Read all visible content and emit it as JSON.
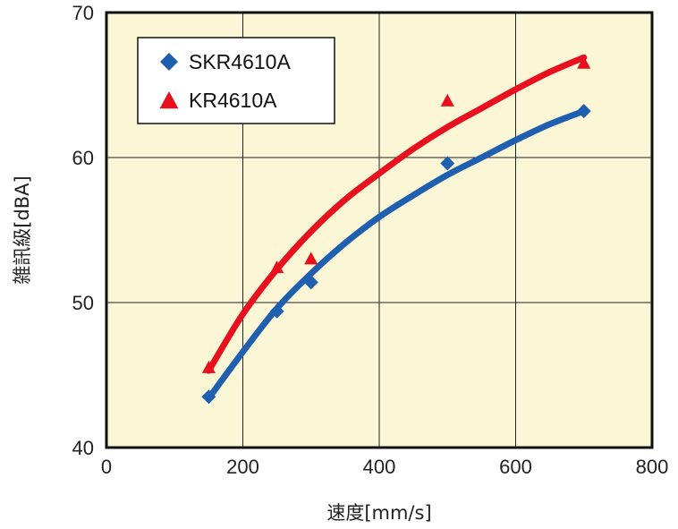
{
  "chart_data": {
    "type": "scatter",
    "xlabel": "速度[mm/s]",
    "ylabel": "雑訊級[dBA]",
    "xlim": [
      0,
      800
    ],
    "ylim": [
      40,
      70
    ],
    "x_ticks": [
      0,
      200,
      400,
      600,
      800
    ],
    "y_ticks": [
      40,
      50,
      60,
      70
    ],
    "x_tick_labels": [
      "0",
      "200",
      "400",
      "600",
      "800"
    ],
    "y_tick_labels": [
      "40",
      "50",
      "60",
      "70"
    ],
    "grid": true,
    "legend_position": "top-left",
    "background_color": "#fbf6d5",
    "series": [
      {
        "name": "SKR4610A",
        "marker": "diamond",
        "color": "#1e5fb0",
        "points": [
          {
            "x": 150,
            "y": 43.5
          },
          {
            "x": 250,
            "y": 49.4
          },
          {
            "x": 300,
            "y": 51.4
          },
          {
            "x": 500,
            "y": 59.6
          },
          {
            "x": 700,
            "y": 63.2
          }
        ],
        "trend": [
          {
            "x": 150,
            "y": 43.4
          },
          {
            "x": 200,
            "y": 46.6
          },
          {
            "x": 250,
            "y": 49.6
          },
          {
            "x": 300,
            "y": 52.0
          },
          {
            "x": 350,
            "y": 54.1
          },
          {
            "x": 400,
            "y": 55.9
          },
          {
            "x": 450,
            "y": 57.4
          },
          {
            "x": 500,
            "y": 58.8
          },
          {
            "x": 550,
            "y": 60.0
          },
          {
            "x": 600,
            "y": 61.2
          },
          {
            "x": 650,
            "y": 62.3
          },
          {
            "x": 700,
            "y": 63.2
          }
        ]
      },
      {
        "name": "KR4610A",
        "marker": "triangle",
        "color": "#e8101e",
        "points": [
          {
            "x": 150,
            "y": 45.5
          },
          {
            "x": 250,
            "y": 52.4
          },
          {
            "x": 300,
            "y": 53.0
          },
          {
            "x": 500,
            "y": 63.9
          },
          {
            "x": 700,
            "y": 66.5
          }
        ],
        "trend": [
          {
            "x": 150,
            "y": 45.3
          },
          {
            "x": 200,
            "y": 49.2
          },
          {
            "x": 250,
            "y": 52.3
          },
          {
            "x": 300,
            "y": 54.9
          },
          {
            "x": 350,
            "y": 57.1
          },
          {
            "x": 400,
            "y": 58.9
          },
          {
            "x": 450,
            "y": 60.6
          },
          {
            "x": 500,
            "y": 62.1
          },
          {
            "x": 550,
            "y": 63.4
          },
          {
            "x": 600,
            "y": 64.7
          },
          {
            "x": 650,
            "y": 65.9
          },
          {
            "x": 700,
            "y": 66.9
          }
        ]
      }
    ]
  }
}
